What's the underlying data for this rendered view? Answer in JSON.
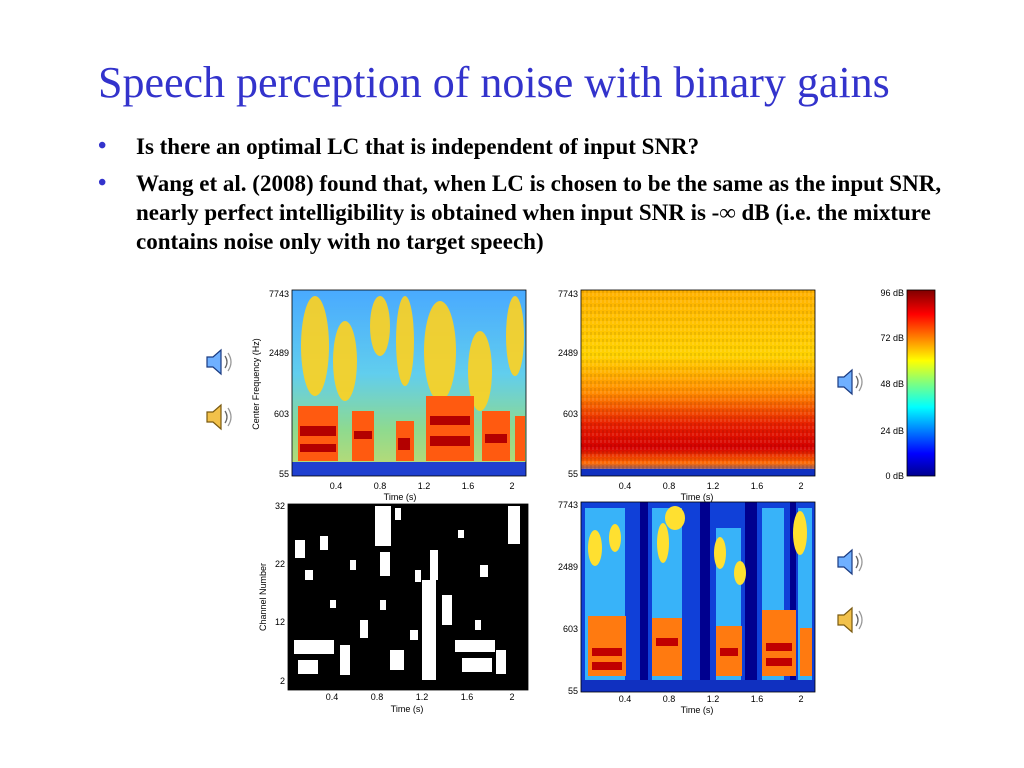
{
  "slide": {
    "title": "Speech perception of noise with binary gains",
    "bullets": [
      "Is there an optimal LC that is independent of input SNR?",
      "Wang et al. (2008) found that, when LC is chosen to be the same as the input SNR, nearly perfect intelligibility is obtained when input SNR is -∞ dB (i.e. the mixture contains noise only with no target speech)"
    ],
    "bullet_glyph": "•"
  },
  "figures": {
    "x_ticks": [
      "0.4",
      "0.8",
      "1.2",
      "1.6",
      "2"
    ],
    "x_label": "Time (s)",
    "freq_ticks": [
      "7743",
      "2489",
      "603",
      "55"
    ],
    "freq_ylabel": "Center Frequency (Hz)",
    "chan_ticks": [
      "32",
      "22",
      "12",
      "2"
    ],
    "chan_ylabel": "Channel Number",
    "colorbar_ticks": [
      "96 dB",
      "72 dB",
      "48 dB",
      "24 dB",
      "0 dB"
    ],
    "colors": {
      "bar_top": "#7f0000",
      "bar_bottom": "#00008f",
      "mask_bg": "#000000",
      "mask_fg": "#ffffff"
    }
  },
  "icons": [
    "speaker-icon-blue",
    "speaker-icon-gold",
    "speaker-icon-blue",
    "speaker-icon-blue",
    "speaker-icon-gold"
  ]
}
